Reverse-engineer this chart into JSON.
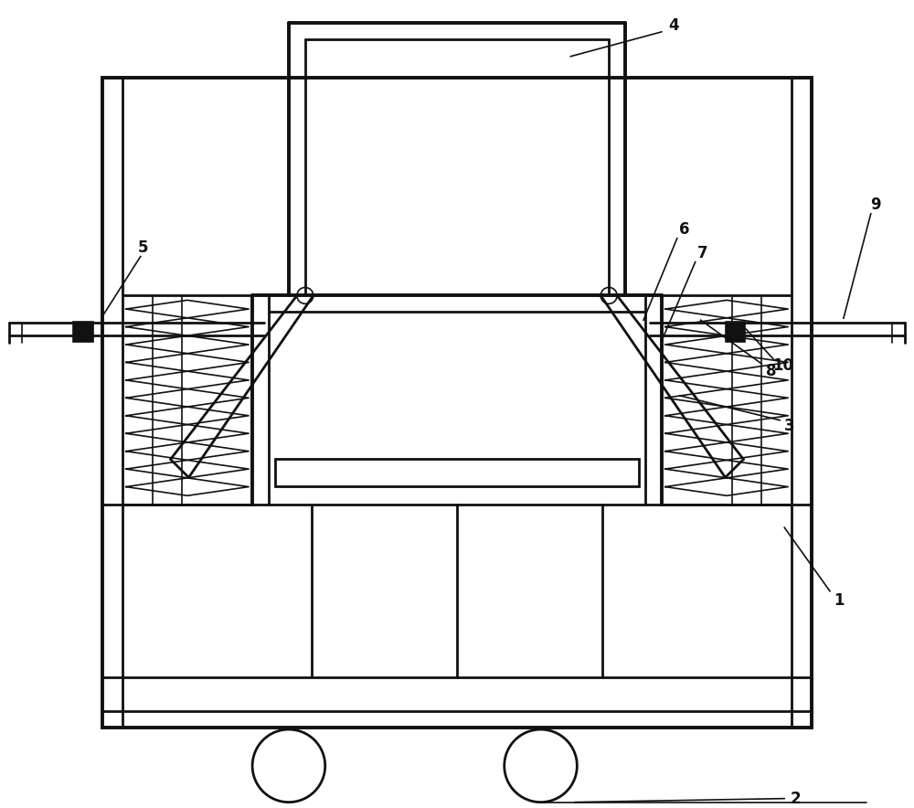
{
  "bg": "#ffffff",
  "lc": "#111111",
  "lw_main": 2.0,
  "lw_thin": 1.2,
  "lw_thick": 2.8,
  "figw": 10.0,
  "figh": 8.84,
  "dpi": 100
}
